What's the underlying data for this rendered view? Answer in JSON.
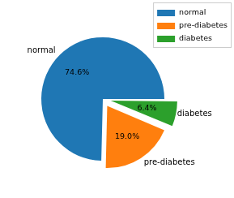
{
  "chart_data": {
    "type": "pie",
    "categories": [
      "normal",
      "pre-diabetes",
      "diabetes"
    ],
    "values": [
      74.6,
      19.0,
      6.4
    ],
    "value_labels": [
      "74.6%",
      "19.0%",
      "6.4%"
    ],
    "colors": [
      "#1f77b4",
      "#ff7f0e",
      "#2ca02c"
    ],
    "legend": "upper right",
    "data_labels": true
  }
}
